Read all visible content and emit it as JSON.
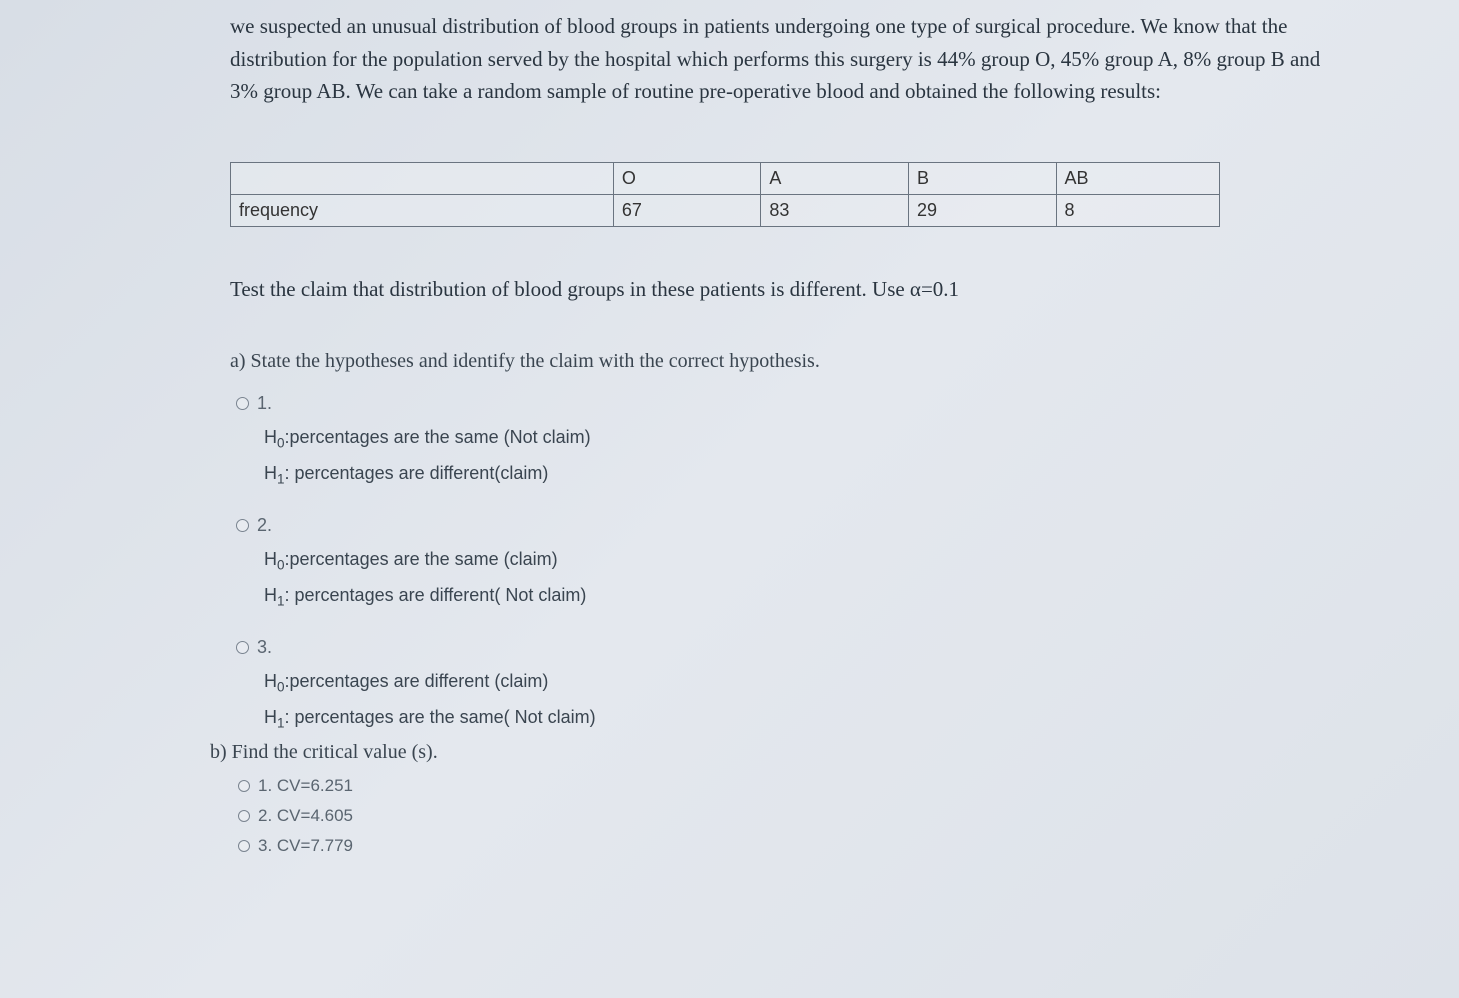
{
  "intro": "we suspected an unusual distribution of blood groups in patients undergoing one type of surgical procedure. We know that the distribution for the population served by the hospital which performs this surgery is 44% group O, 45% group A, 8% group B and 3% group AB. We can take a random sample of routine pre-operative blood and obtained the following results:",
  "table": {
    "row_label": "frequency",
    "columns": [
      "O",
      "A",
      "B",
      "AB"
    ],
    "values": [
      "67",
      "83",
      "29",
      "8"
    ]
  },
  "instruction": "Test the claim that distribution of blood groups in these patients is different. Use α=0.1",
  "part_a": {
    "label": "a) State the hypotheses and identify the claim with the correct hypothesis.",
    "options": [
      {
        "num": "1.",
        "h0_prefix": "H",
        "h0_sub": "0",
        "h0_text": ":percentages are the same (Not claim)",
        "h1_prefix": "H",
        "h1_sub": "1",
        "h1_text": ": percentages are different(claim)"
      },
      {
        "num": "2.",
        "h0_prefix": "H",
        "h0_sub": "0",
        "h0_text": ":percentages are the same (claim)",
        "h1_prefix": "H",
        "h1_sub": "1",
        "h1_text": ": percentages are different( Not claim)"
      },
      {
        "num": "3.",
        "h0_prefix": "H",
        "h0_sub": "0",
        "h0_text": ":percentages are  different (claim)",
        "h1_prefix": "H",
        "h1_sub": "1",
        "h1_text": ": percentages are the same( Not claim)"
      }
    ]
  },
  "part_b": {
    "label": "b) Find the critical value (s).",
    "options": [
      {
        "text": "1. CV=6.251"
      },
      {
        "text": "2. CV=4.605"
      },
      {
        "text": "3. CV=7.779"
      }
    ]
  }
}
